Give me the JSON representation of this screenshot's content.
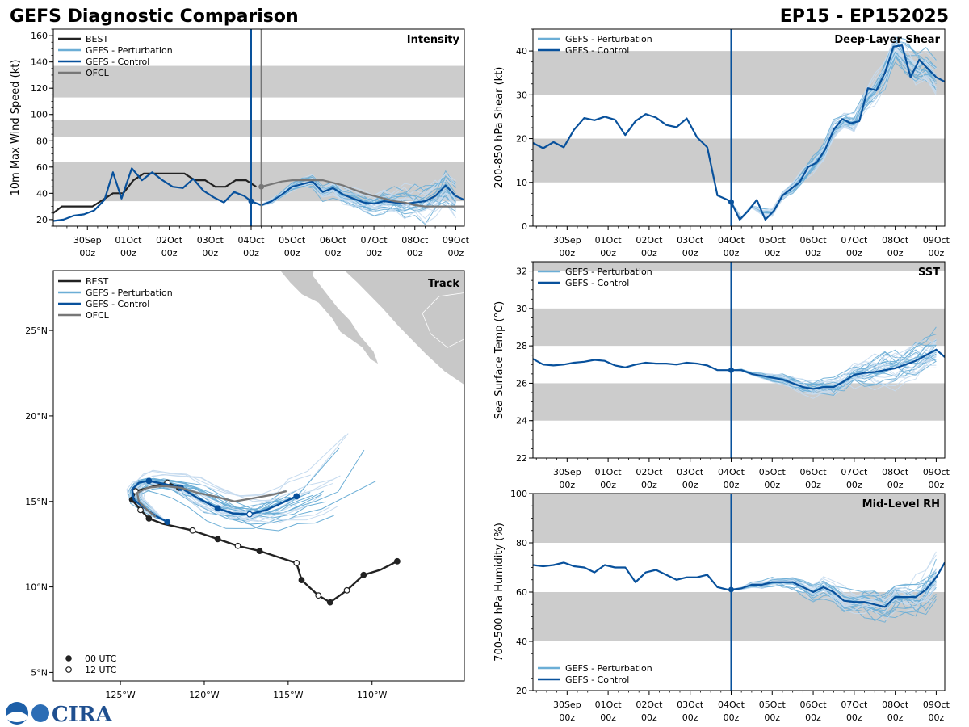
{
  "header": {
    "left_title": "GEFS Diagnostic Comparison",
    "right_title": "EP15 - EP152025"
  },
  "logo": {
    "text": "CIRA"
  },
  "colors": {
    "best": "#222222",
    "perturbation": "#6baed6",
    "perturbation_light": "#c6dbef",
    "control": "#08519c",
    "ofcl": "#777777",
    "band": "#cccccc",
    "land": "#c8c8c8"
  },
  "time_axis": {
    "day_labels": [
      "30Sep",
      "01Oct",
      "02Oct",
      "03Oct",
      "04Oct",
      "05Oct",
      "06Oct",
      "07Oct",
      "08Oct",
      "09Oct"
    ],
    "hour_label": "00z",
    "day_values": [
      0,
      24,
      48,
      72,
      96,
      120,
      144,
      168,
      192,
      216
    ],
    "xlim": [
      -20,
      221
    ],
    "init_hour": 96
  },
  "legend_labels": {
    "best": "BEST",
    "perturbation": "GEFS - Perturbation",
    "control": "GEFS - Control",
    "ofcl": "OFCL",
    "utc00": "00 UTC",
    "utc12": "12 UTC"
  },
  "chart_data": [
    {
      "id": "intensity",
      "type": "line",
      "title": "Intensity",
      "ylabel": "10m Max Wind Speed (kt)",
      "ylim": [
        15,
        165
      ],
      "yticks": [
        20,
        40,
        60,
        80,
        100,
        120,
        140,
        160
      ],
      "bands": [
        [
          34,
          64
        ],
        [
          83,
          96
        ],
        [
          113,
          137
        ]
      ],
      "ofcl_marker_hour": 102,
      "series": [
        {
          "name": "BEST",
          "x": [
            -20,
            -15,
            -9,
            -3,
            3,
            9,
            15,
            21,
            27,
            33,
            39,
            45,
            51,
            57,
            63,
            69,
            75,
            81,
            87,
            93,
            99
          ],
          "values": [
            25,
            30,
            30,
            30,
            30,
            35,
            40,
            40,
            50,
            55,
            55,
            55,
            55,
            55,
            50,
            50,
            45,
            45,
            50,
            50,
            45
          ]
        },
        {
          "name": "GEFS - Control",
          "x": [
            -20,
            -14,
            -8,
            -2,
            4,
            10,
            15,
            20,
            26,
            32,
            38,
            44,
            50,
            56,
            62,
            68,
            74,
            80,
            86,
            92,
            96,
            102,
            108,
            114,
            120,
            126,
            132,
            138,
            144,
            150,
            156,
            162,
            168,
            174,
            180,
            186,
            192,
            198,
            204,
            210,
            216,
            221
          ],
          "values": [
            19,
            20,
            23,
            24,
            27,
            35,
            56,
            36,
            59,
            50,
            56,
            50,
            45,
            44,
            51,
            42,
            37,
            33,
            41,
            38,
            34,
            31,
            34,
            39,
            45,
            47,
            49,
            41,
            44,
            39,
            36,
            33,
            32,
            34,
            33,
            32,
            33,
            34,
            38,
            46,
            38,
            35
          ]
        },
        {
          "name": "OFCL",
          "x": [
            102,
            108,
            114,
            120,
            126,
            132,
            138,
            144,
            150,
            156,
            162,
            168,
            174,
            180,
            186,
            192,
            198,
            204,
            210,
            216,
            221
          ],
          "values": [
            45,
            47,
            49,
            50,
            50,
            50,
            50,
            48,
            46,
            43,
            40,
            38,
            36,
            34,
            33,
            31,
            30,
            30,
            30,
            30,
            30
          ]
        }
      ]
    },
    {
      "id": "shear",
      "type": "line",
      "title": "Deep-Layer Shear",
      "ylabel": "200-850 hPa Shear (kt)",
      "ylim": [
        0,
        45
      ],
      "yticks": [
        0,
        10,
        20,
        30,
        40
      ],
      "bands": [
        [
          10,
          20
        ],
        [
          30,
          40
        ]
      ],
      "series": [
        {
          "name": "GEFS - Control",
          "x": [
            -20,
            -14,
            -8,
            -2,
            4,
            10,
            16,
            22,
            28,
            34,
            40,
            46,
            52,
            58,
            64,
            70,
            76,
            82,
            88,
            94,
            96,
            101,
            106,
            111,
            116,
            121,
            126,
            131,
            136,
            141,
            146,
            151,
            156,
            161,
            166,
            171,
            176,
            181,
            186,
            191,
            196,
            201,
            206,
            211,
            216,
            221
          ],
          "values": [
            19,
            17.8,
            19.2,
            18,
            22,
            24.7,
            24.2,
            25,
            24.3,
            20.8,
            24,
            25.6,
            24.8,
            23.1,
            22.6,
            24.6,
            20.3,
            18,
            7,
            6,
            5.5,
            1.5,
            3.5,
            6,
            1.5,
            3.5,
            7,
            8.5,
            10,
            13.5,
            14.5,
            17.5,
            22,
            24.5,
            23.5,
            24,
            31.5,
            31,
            35,
            41,
            41.3,
            34,
            38,
            36,
            34,
            33
          ]
        }
      ]
    },
    {
      "id": "sst",
      "type": "line",
      "title": "SST",
      "ylabel": "Sea Surface Temp (°C)",
      "ylim": [
        22,
        32.5
      ],
      "yticks": [
        22,
        24,
        26,
        28,
        30,
        32
      ],
      "bands": [
        [
          24,
          26
        ],
        [
          28,
          30
        ],
        [
          32,
          32.5
        ]
      ],
      "series": [
        {
          "name": "GEFS - Control",
          "x": [
            -20,
            -14,
            -8,
            -2,
            4,
            10,
            16,
            22,
            28,
            34,
            40,
            46,
            52,
            58,
            64,
            70,
            76,
            82,
            88,
            94,
            96,
            102,
            108,
            114,
            120,
            126,
            132,
            138,
            144,
            150,
            156,
            162,
            168,
            174,
            180,
            186,
            192,
            198,
            204,
            210,
            216,
            221
          ],
          "values": [
            27.3,
            27,
            26.95,
            27,
            27.1,
            27.15,
            27.25,
            27.2,
            26.95,
            26.85,
            27,
            27.1,
            27.05,
            27.05,
            27,
            27.1,
            27.05,
            26.95,
            26.7,
            26.7,
            26.7,
            26.7,
            26.5,
            26.4,
            26.3,
            26.2,
            26.0,
            25.8,
            25.7,
            25.8,
            25.8,
            26.1,
            26.45,
            26.55,
            26.6,
            26.7,
            26.8,
            27,
            27.2,
            27.5,
            27.8,
            27.4
          ]
        }
      ]
    },
    {
      "id": "rh",
      "type": "line",
      "title": "Mid-Level RH",
      "ylabel": "700-500 hPa Humidity (%)",
      "ylim": [
        20,
        100
      ],
      "yticks": [
        20,
        40,
        60,
        80,
        100
      ],
      "bands": [
        [
          40,
          60
        ],
        [
          80,
          100
        ]
      ],
      "series": [
        {
          "name": "GEFS - Control",
          "x": [
            -20,
            -14,
            -8,
            -2,
            4,
            10,
            16,
            22,
            28,
            34,
            40,
            46,
            52,
            58,
            64,
            70,
            76,
            82,
            88,
            94,
            96,
            102,
            108,
            114,
            120,
            126,
            132,
            138,
            144,
            150,
            156,
            162,
            168,
            174,
            180,
            186,
            192,
            198,
            204,
            210,
            216,
            221
          ],
          "values": [
            71,
            70.5,
            71,
            72,
            70.5,
            70,
            68,
            71,
            70,
            70,
            64,
            68,
            69,
            67,
            65,
            66,
            66,
            67,
            62,
            61,
            61,
            61.5,
            63,
            63,
            64,
            64,
            64,
            62,
            60,
            62,
            60,
            56.5,
            56,
            56,
            55,
            54,
            58,
            58,
            58,
            61,
            66,
            72
          ]
        }
      ]
    },
    {
      "id": "track",
      "type": "line",
      "title": "Track",
      "xlim": [
        -129,
        -104.5
      ],
      "ylim": [
        4.5,
        28.5
      ],
      "xticks": [
        -125,
        -120,
        -115,
        -110
      ],
      "xtick_labels": [
        "125°W",
        "120°W",
        "115°W",
        "110°W"
      ],
      "yticks": [
        5,
        10,
        15,
        20,
        25
      ],
      "ytick_labels": [
        "5°N",
        "10°N",
        "15°N",
        "20°N",
        "25°N"
      ],
      "series": [
        {
          "name": "BEST",
          "lon": [
            -108.5,
            -109.5,
            -110.5,
            -111.5,
            -112.5,
            -113.2,
            -114.2,
            -114.5,
            -116.7,
            -118.0,
            -119.2,
            -120.7,
            -122.5,
            -123.3,
            -123.8,
            -124.3,
            -124.1,
            -122.2,
            -121.5
          ],
          "lat": [
            11.5,
            11.0,
            10.7,
            9.8,
            9.1,
            9.5,
            10.4,
            11.4,
            12.1,
            12.4,
            12.8,
            13.3,
            13.7,
            14.0,
            14.5,
            15.1,
            15.6,
            16.1,
            15.8
          ],
          "utc": [
            "00",
            "",
            "00",
            "12",
            "00",
            "12",
            "00",
            "12",
            "00",
            "12",
            "00",
            "12",
            "",
            "00",
            "12",
            "00",
            "12",
            "12",
            "00"
          ]
        },
        {
          "name": "GEFS - Control",
          "lon": [
            -122.2,
            -122.8,
            -123.4,
            -124.2,
            -124.3,
            -123.9,
            -123.3,
            -122.3,
            -121.4,
            -120.4,
            -119.2,
            -118.3,
            -117.3,
            -116.3,
            -115.4,
            -114.5
          ],
          "lat": [
            13.8,
            14.1,
            14.5,
            15.1,
            15.7,
            16.1,
            16.2,
            16.0,
            15.8,
            15.2,
            14.6,
            14.3,
            14.25,
            14.5,
            14.9,
            15.3
          ],
          "utc": [
            "",
            "",
            "",
            "",
            "",
            "",
            "00",
            "",
            "00",
            "",
            "00",
            "",
            "12",
            "",
            "",
            "00"
          ]
        },
        {
          "name": "OFCL",
          "lon": [
            -122.9,
            -123.4,
            -123.9,
            -124.0,
            -123.4,
            -122.4,
            -121.4,
            -120.4,
            -119.4,
            -118.2,
            -117.0,
            -115.9,
            -115.1
          ],
          "lat": [
            14.1,
            14.5,
            15.0,
            15.5,
            15.8,
            15.9,
            15.8,
            15.5,
            15.3,
            15.0,
            15.2,
            15.4,
            15.6
          ]
        }
      ]
    }
  ]
}
